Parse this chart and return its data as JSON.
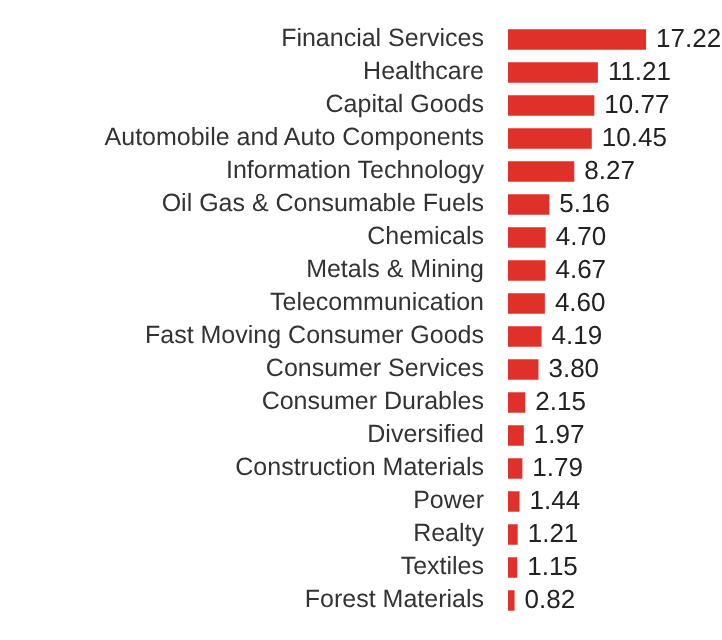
{
  "chart_data": {
    "type": "bar",
    "orientation": "horizontal",
    "categories": [
      "Financial Services",
      "Healthcare",
      "Capital Goods",
      "Automobile and Auto Components",
      "Information Technology",
      "Oil Gas & Consumable Fuels",
      "Chemicals",
      "Metals & Mining",
      "Telecommunication",
      "Fast Moving Consumer Goods",
      "Consumer Services",
      "Consumer Durables",
      "Diversified",
      "Construction Materials",
      "Power",
      "Realty",
      "Textiles",
      "Forest Materials"
    ],
    "values": [
      17.22,
      11.21,
      10.77,
      10.45,
      8.27,
      5.16,
      4.7,
      4.67,
      4.6,
      4.19,
      3.8,
      2.15,
      1.97,
      1.79,
      1.44,
      1.21,
      1.15,
      0.82
    ],
    "value_labels": [
      "17.22",
      "11.21",
      "10.77",
      "10.45",
      "8.27",
      "5.16",
      "4.70",
      "4.67",
      "4.60",
      "4.19",
      "3.80",
      "2.15",
      "1.97",
      "1.79",
      "1.44",
      "1.21",
      "1.15",
      "0.82"
    ],
    "color": "#e0302a"
  }
}
